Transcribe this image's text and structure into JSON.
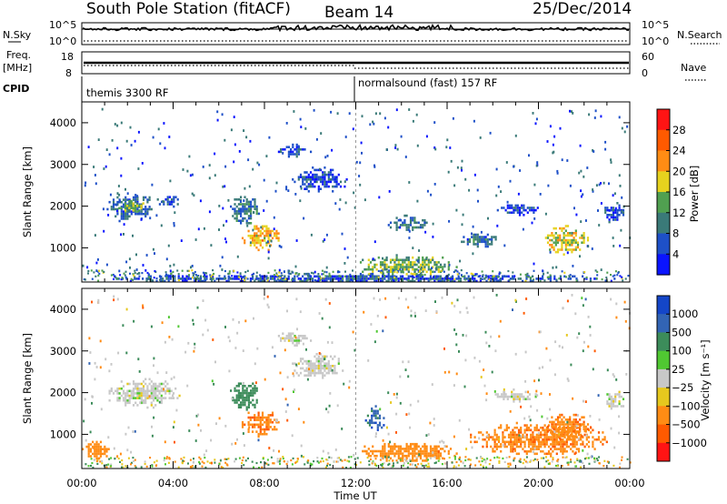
{
  "header": {
    "station": "South Pole Station (fitACF)",
    "beam": "Beam 14",
    "date": "25/Dec/2014"
  },
  "top_panels": {
    "nsky_label": "N.Sky",
    "nsky_tick_top": "10^5",
    "nsky_tick_bottom": "10^0",
    "nsky_right_tick_top": "10^5",
    "nsky_right_tick_bottom": "10^0",
    "nsearch_label": "N.Search",
    "freq_label_line1": "Freq.",
    "freq_label_line2": "[MHz]",
    "freq_tick_top": "18",
    "freq_tick_bottom": "8",
    "nave_tick_top": "60",
    "nave_tick_bottom": "0",
    "nave_label": "Nave",
    "cpid_label": "CPID",
    "cpid_modes": [
      {
        "label": "themis 3300 RF",
        "start_hour": 0
      },
      {
        "label": "normalsound (fast) 157 RF",
        "start_hour": 12
      }
    ]
  },
  "chart_data": [
    {
      "type": "heatmap",
      "name": "power",
      "ylabel": "Slant Range [km]",
      "xlabel": "",
      "xlim": [
        0,
        24
      ],
      "ylim": [
        180,
        4500
      ],
      "yticks": [
        1000,
        2000,
        3000,
        4000
      ],
      "colorbar": {
        "label": "Power [dB]",
        "ticks": [
          4,
          8,
          12,
          16,
          20,
          24,
          28
        ],
        "range": [
          0,
          32
        ],
        "colors": [
          "#0a14ff",
          "#1e50c8",
          "#3a7a78",
          "#50a050",
          "#e6d21e",
          "#ff8c14",
          "#ff5a00",
          "#ff1414"
        ]
      },
      "regions": [
        {
          "x": [
            1.0,
            3.2
          ],
          "y": [
            1650,
            2350
          ],
          "value": 8
        },
        {
          "x": [
            1.6,
            2.8
          ],
          "y": [
            1850,
            2150
          ],
          "value": 14
        },
        {
          "x": [
            3.2,
            4.3
          ],
          "y": [
            2000,
            2300
          ],
          "value": 6
        },
        {
          "x": [
            6.4,
            7.8
          ],
          "y": [
            1600,
            2300
          ],
          "value": 10
        },
        {
          "x": [
            7.0,
            8.6
          ],
          "y": [
            950,
            1600
          ],
          "value": 20
        },
        {
          "x": [
            8.5,
            10.0
          ],
          "y": [
            3150,
            3500
          ],
          "value": 6
        },
        {
          "x": [
            9.2,
            11.6
          ],
          "y": [
            2350,
            2950
          ],
          "value": 5
        },
        {
          "x": [
            12.0,
            16.5
          ],
          "y": [
            350,
            850
          ],
          "value": 14
        },
        {
          "x": [
            13.4,
            15.2
          ],
          "y": [
            1400,
            1800
          ],
          "value": 9
        },
        {
          "x": [
            16.6,
            18.2
          ],
          "y": [
            1050,
            1400
          ],
          "value": 8
        },
        {
          "x": [
            18.0,
            20.0
          ],
          "y": [
            1800,
            2100
          ],
          "value": 5
        },
        {
          "x": [
            20.2,
            22.2
          ],
          "y": [
            850,
            1550
          ],
          "value": 18
        },
        {
          "x": [
            22.8,
            23.8
          ],
          "y": [
            1600,
            2100
          ],
          "value": 6
        },
        {
          "x": [
            0.0,
            24.0
          ],
          "y": [
            180,
            400
          ],
          "value": 6
        }
      ]
    },
    {
      "type": "heatmap",
      "name": "velocity",
      "ylabel": "Slant Range [km]",
      "xlabel": "Time UT",
      "xlim": [
        0,
        24
      ],
      "ylim": [
        180,
        4500
      ],
      "xticks": [
        "00:00",
        "04:00",
        "08:00",
        "12:00",
        "16:00",
        "20:00",
        "00:00"
      ],
      "yticks": [
        1000,
        2000,
        3000,
        4000
      ],
      "colorbar": {
        "label": "Velocity [m s⁻¹]",
        "ticks": [
          "1000",
          "500",
          "100",
          "25",
          "−25",
          "−100",
          "−500",
          "−1000"
        ],
        "colors": [
          "#1446c8",
          "#3264b4",
          "#3c8c5a",
          "#50c832",
          "#c8c8c8",
          "#e6c81e",
          "#ff8c14",
          "#ff5a00",
          "#ff1414"
        ]
      },
      "regions": [
        {
          "x": [
            1.0,
            4.3
          ],
          "y": [
            1650,
            2350
          ],
          "value": 0
        },
        {
          "x": [
            6.4,
            7.8
          ],
          "y": [
            1600,
            2300
          ],
          "value": 200
        },
        {
          "x": [
            7.0,
            8.6
          ],
          "y": [
            950,
            1600
          ],
          "value": -400
        },
        {
          "x": [
            8.5,
            10.0
          ],
          "y": [
            3150,
            3500
          ],
          "value": 0
        },
        {
          "x": [
            9.2,
            11.6
          ],
          "y": [
            2350,
            2950
          ],
          "value": 0
        },
        {
          "x": [
            12.4,
            13.3
          ],
          "y": [
            1100,
            1700
          ],
          "value": 800
        },
        {
          "x": [
            12.0,
            16.5
          ],
          "y": [
            350,
            850
          ],
          "value": -300
        },
        {
          "x": [
            17.0,
            23.0
          ],
          "y": [
            500,
            1300
          ],
          "value": -400
        },
        {
          "x": [
            18.0,
            20.0
          ],
          "y": [
            1800,
            2100
          ],
          "value": 0
        },
        {
          "x": [
            20.2,
            22.2
          ],
          "y": [
            850,
            1550
          ],
          "value": -400
        },
        {
          "x": [
            22.8,
            23.8
          ],
          "y": [
            1600,
            2100
          ],
          "value": 0
        },
        {
          "x": [
            0.0,
            1.2
          ],
          "y": [
            400,
            900
          ],
          "value": -300
        }
      ]
    }
  ]
}
